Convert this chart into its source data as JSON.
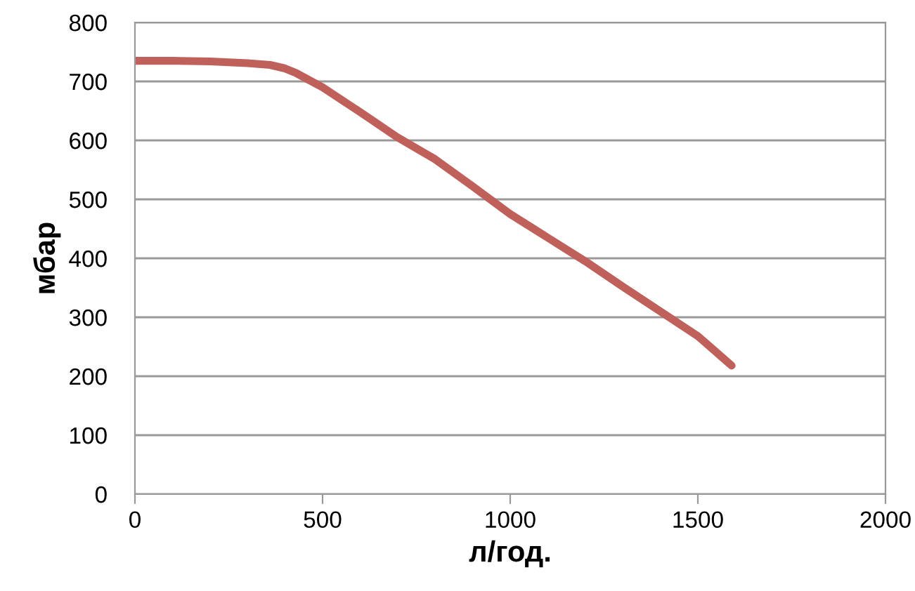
{
  "chart_data": {
    "type": "line",
    "xlabel": "л/год.",
    "ylabel": "мбар",
    "series": [
      {
        "color": "#c0605a",
        "x": [
          0,
          100,
          200,
          300,
          360,
          400,
          430,
          500,
          600,
          700,
          800,
          900,
          1000,
          1100,
          1200,
          1300,
          1400,
          1500,
          1590
        ],
        "values": [
          735,
          735,
          734,
          731,
          728,
          722,
          714,
          690,
          648,
          605,
          568,
          522,
          475,
          435,
          395,
          352,
          310,
          268,
          218
        ]
      }
    ],
    "xlim": [
      0,
      2000
    ],
    "ylim": [
      0,
      800
    ],
    "xticks": [
      0,
      500,
      1000,
      1500,
      2000
    ],
    "yticks": [
      0,
      100,
      200,
      300,
      400,
      500,
      600,
      700,
      800
    ],
    "grid": "y",
    "marker": "none",
    "line_style": "solid",
    "legend": false
  }
}
